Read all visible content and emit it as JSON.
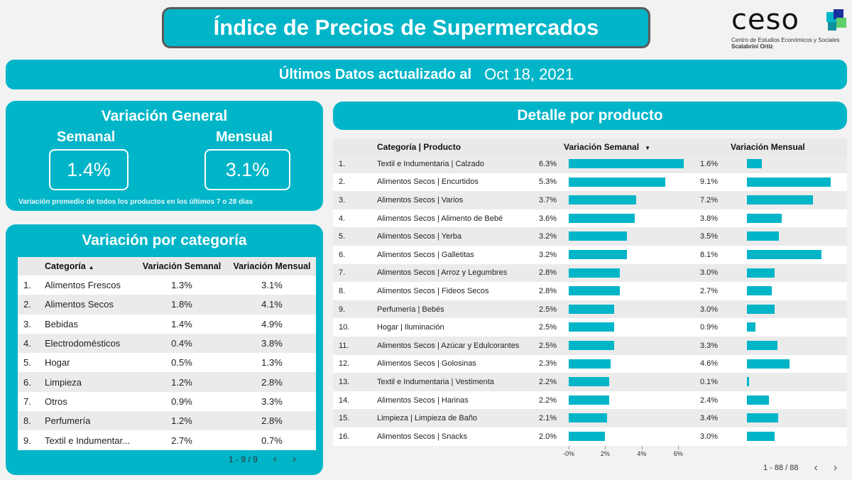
{
  "header": {
    "title": "Índice de Precios de Supermercados"
  },
  "logo": {
    "wordmark": "ceso",
    "subtitle": "Centro de Estudios Económicos y Sociales",
    "subtitle2": "Scalabrini Ortiz",
    "colors": [
      "#1a2fa0",
      "#00b5c8",
      "#5fd06a",
      "#0d8f9e"
    ]
  },
  "update": {
    "label": "Últimos Datos actualizado al",
    "date": "Oct 18, 2021"
  },
  "general": {
    "title": "Variación General",
    "weekly_label": "Semanal",
    "monthly_label": "Mensual",
    "weekly_value": "1.4%",
    "monthly_value": "3.1%",
    "note": "Variación promedio de todos los productos en los últimos 7 o 28 días"
  },
  "by_category": {
    "title": "Variación por categoría",
    "headers": {
      "category": "Categoría",
      "weekly": "Variación Semanal",
      "monthly": "Variación Mensual"
    },
    "sort_icon": "▲",
    "rows": [
      {
        "n": "1.",
        "category": "Alimentos Frescos",
        "weekly": "1.3%",
        "monthly": "3.1%"
      },
      {
        "n": "2.",
        "category": "Alimentos Secos",
        "weekly": "1.8%",
        "monthly": "4.1%"
      },
      {
        "n": "3.",
        "category": "Bebidas",
        "weekly": "1.4%",
        "monthly": "4.9%"
      },
      {
        "n": "4.",
        "category": "Electrodomésticos",
        "weekly": "0.4%",
        "monthly": "3.8%"
      },
      {
        "n": "5.",
        "category": "Hogar",
        "weekly": "0.5%",
        "monthly": "1.3%"
      },
      {
        "n": "6.",
        "category": "Limpieza",
        "weekly": "1.2%",
        "monthly": "2.8%"
      },
      {
        "n": "7.",
        "category": "Otros",
        "weekly": "0.9%",
        "monthly": "3.3%"
      },
      {
        "n": "8.",
        "category": "Perfumería",
        "weekly": "1.2%",
        "monthly": "2.8%"
      },
      {
        "n": "9.",
        "category": "Textil e Indumentar...",
        "weekly": "2.7%",
        "monthly": "0.7%"
      }
    ],
    "pager": "1 - 9 / 9"
  },
  "by_product": {
    "title": "Detalle por producto",
    "headers": {
      "product": "Categoría | Producto",
      "weekly": "Variación Semanal",
      "monthly": "Variación Mensual"
    },
    "sort_icon": "▼",
    "weekly_max": 6.3,
    "monthly_max": 9.1,
    "axis_ticks": [
      "-0%",
      "2%",
      "4%",
      "6%"
    ],
    "pager": "1 - 88 / 88",
    "rows": [
      {
        "n": "1.",
        "product": "Textil e Indumentaria | Calzado",
        "weekly": 6.3,
        "weekly_label": "6.3%",
        "monthly": 1.6,
        "monthly_label": "1.6%"
      },
      {
        "n": "2.",
        "product": "Alimentos Secos | Encurtidos",
        "weekly": 5.3,
        "weekly_label": "5.3%",
        "monthly": 9.1,
        "monthly_label": "9.1%"
      },
      {
        "n": "3.",
        "product": "Alimentos Secos | Varios",
        "weekly": 3.7,
        "weekly_label": "3.7%",
        "monthly": 7.2,
        "monthly_label": "7.2%"
      },
      {
        "n": "4.",
        "product": "Alimentos Secos | Alimento de Bebé",
        "weekly": 3.6,
        "weekly_label": "3.6%",
        "monthly": 3.8,
        "monthly_label": "3.8%"
      },
      {
        "n": "5.",
        "product": "Alimentos Secos | Yerba",
        "weekly": 3.2,
        "weekly_label": "3.2%",
        "monthly": 3.5,
        "monthly_label": "3.5%"
      },
      {
        "n": "6.",
        "product": "Alimentos Secos | Galletitas",
        "weekly": 3.2,
        "weekly_label": "3.2%",
        "monthly": 8.1,
        "monthly_label": "8.1%"
      },
      {
        "n": "7.",
        "product": "Alimentos Secos | Arroz y Legumbres",
        "weekly": 2.8,
        "weekly_label": "2.8%",
        "monthly": 3.0,
        "monthly_label": "3.0%"
      },
      {
        "n": "8.",
        "product": "Alimentos Secos | Fideos Secos",
        "weekly": 2.8,
        "weekly_label": "2.8%",
        "monthly": 2.7,
        "monthly_label": "2.7%"
      },
      {
        "n": "9.",
        "product": "Perfumería | Bebés",
        "weekly": 2.5,
        "weekly_label": "2.5%",
        "monthly": 3.0,
        "monthly_label": "3.0%"
      },
      {
        "n": "10.",
        "product": "Hogar | Iluminación",
        "weekly": 2.5,
        "weekly_label": "2.5%",
        "monthly": 0.9,
        "monthly_label": "0.9%"
      },
      {
        "n": "11.",
        "product": "Alimentos Secos | Azúcar y Edulcorantes",
        "weekly": 2.5,
        "weekly_label": "2.5%",
        "monthly": 3.3,
        "monthly_label": "3.3%"
      },
      {
        "n": "12.",
        "product": "Alimentos Secos | Golosinas",
        "weekly": 2.3,
        "weekly_label": "2.3%",
        "monthly": 4.6,
        "monthly_label": "4.6%"
      },
      {
        "n": "13.",
        "product": "Textil e Indumentaria | Vestimenta",
        "weekly": 2.2,
        "weekly_label": "2.2%",
        "monthly": 0.1,
        "monthly_label": "0.1%"
      },
      {
        "n": "14.",
        "product": "Alimentos Secos | Harinas",
        "weekly": 2.2,
        "weekly_label": "2.2%",
        "monthly": 2.4,
        "monthly_label": "2.4%"
      },
      {
        "n": "15.",
        "product": "Limpieza | Limpieza de Baño",
        "weekly": 2.1,
        "weekly_label": "2.1%",
        "monthly": 3.4,
        "monthly_label": "3.4%"
      },
      {
        "n": "16.",
        "product": "Alimentos Secos | Snacks",
        "weekly": 2.0,
        "weekly_label": "2.0%",
        "monthly": 3.0,
        "monthly_label": "3.0%"
      }
    ]
  },
  "colors": {
    "accent": "#00b5c8",
    "row_alt": "#ebebeb",
    "header_bg": "#e9e9e9"
  }
}
